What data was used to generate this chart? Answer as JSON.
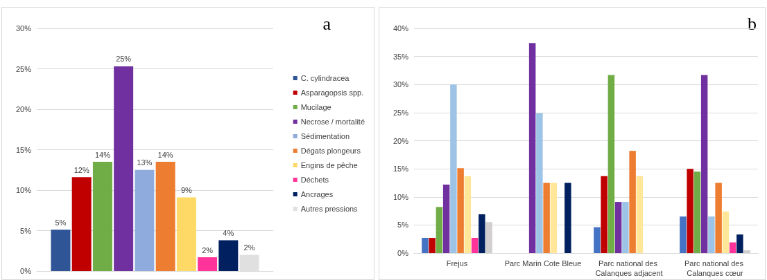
{
  "chart_data": [
    {
      "type": "bar",
      "annotations": [
        "a"
      ],
      "categories": [
        null
      ],
      "legend": "right",
      "grid": "y",
      "ylim": [
        0,
        30
      ],
      "yticks": [
        {
          "value": 0,
          "label": "0%"
        },
        {
          "value": 5,
          "label": "5%"
        },
        {
          "value": 10,
          "label": "10%"
        },
        {
          "value": 15,
          "label": "15%"
        },
        {
          "value": 20,
          "label": "20%"
        },
        {
          "value": 25,
          "label": "25%"
        },
        {
          "value": 30,
          "label": "30%"
        }
      ],
      "series": [
        {
          "name": "C. cylindracea",
          "color": "#2f5597",
          "values": [
            5.1
          ],
          "value_labels": [
            "5%"
          ]
        },
        {
          "name": "Asparagopsis spp.",
          "color": "#c00000",
          "values": [
            11.6
          ],
          "value_labels": [
            "12%"
          ]
        },
        {
          "name": "Mucilage",
          "color": "#70ad47",
          "values": [
            13.5
          ],
          "value_labels": [
            "14%"
          ]
        },
        {
          "name": "Necrose / mortalité",
          "color": "#7030a0",
          "values": [
            25.3
          ],
          "value_labels": [
            "25%"
          ]
        },
        {
          "name": "Sédimentation",
          "color": "#8faadc",
          "values": [
            12.5
          ],
          "value_labels": [
            "13%"
          ]
        },
        {
          "name": "Dégats plongeurs",
          "color": "#ed7d31",
          "values": [
            13.5
          ],
          "value_labels": [
            "14%"
          ]
        },
        {
          "name": "Engins de pêche",
          "color": "#ffd966",
          "values": [
            9.1
          ],
          "value_labels": [
            "9%"
          ]
        },
        {
          "name": "Déchets",
          "color": "#ff3399",
          "values": [
            1.7
          ],
          "value_labels": [
            "2%"
          ]
        },
        {
          "name": "Ancrages",
          "color": "#002060",
          "values": [
            3.8
          ],
          "value_labels": [
            "4%"
          ]
        },
        {
          "name": "Autres pressions",
          "color": "#e0e0e0",
          "values": [
            2.0
          ],
          "value_labels": [
            "2%"
          ]
        }
      ]
    },
    {
      "type": "bar",
      "annotations": [
        "b"
      ],
      "categories": [
        "Frejus",
        "Parc Marin Cote Bleue",
        "Parc national des Calanques adjacent",
        "Parc national des Calanques cœur"
      ],
      "grid": "y",
      "ylim": [
        0,
        40
      ],
      "yticks": [
        {
          "value": 0,
          "label": "0%"
        },
        {
          "value": 5,
          "label": "5%"
        },
        {
          "value": 10,
          "label": "10%"
        },
        {
          "value": 15,
          "label": "15%"
        },
        {
          "value": 20,
          "label": "20%"
        },
        {
          "value": 25,
          "label": "25%"
        },
        {
          "value": 30,
          "label": "30%"
        },
        {
          "value": 35,
          "label": "35%"
        },
        {
          "value": 40,
          "label": "40%"
        }
      ],
      "series": [
        {
          "color": "#4472c4",
          "values": [
            2.7,
            0,
            4.6,
            6.5
          ]
        },
        {
          "color": "#c00000",
          "values": [
            2.7,
            0,
            13.7,
            15.0
          ]
        },
        {
          "color": "#70ad47",
          "values": [
            8.2,
            0,
            31.7,
            14.5
          ]
        },
        {
          "color": "#7030a0",
          "values": [
            12.2,
            37.4,
            9.1,
            31.7
          ]
        },
        {
          "color": "#9dc3e6",
          "values": [
            30.0,
            24.9,
            9.1,
            6.5
          ]
        },
        {
          "color": "#ed7d31",
          "values": [
            15.1,
            12.5,
            18.2,
            12.5
          ]
        },
        {
          "color": "#ffe699",
          "values": [
            13.7,
            12.5,
            13.7,
            7.4
          ]
        },
        {
          "color": "#ff3399",
          "values": [
            2.7,
            0,
            0,
            1.9
          ]
        },
        {
          "color": "#002060",
          "values": [
            6.9,
            12.5,
            0,
            3.3
          ]
        },
        {
          "color": "#d0cece",
          "values": [
            5.5,
            0,
            0,
            0.5
          ]
        }
      ]
    }
  ]
}
